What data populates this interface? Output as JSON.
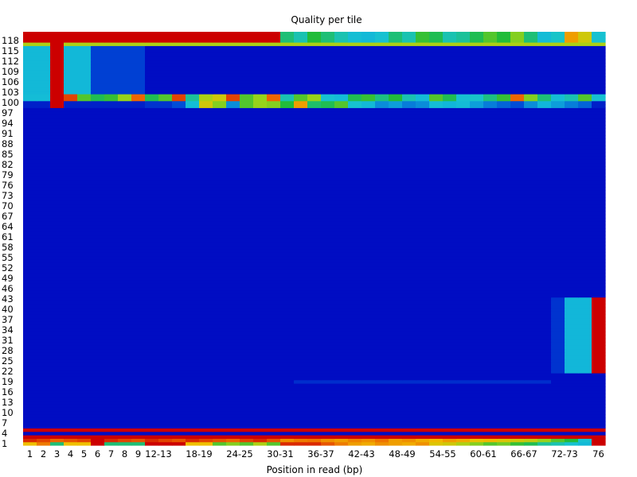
{
  "chart_data": {
    "type": "heatmap",
    "title": "Quality per tile",
    "xlabel": "Position in read (bp)",
    "ylabel": "",
    "x_tick_labels": [
      "1",
      "2",
      "3",
      "4",
      "5",
      "6",
      "7",
      "8",
      "9",
      "12-13",
      "18-19",
      "24-25",
      "30-31",
      "36-37",
      "42-43",
      "48-49",
      "54-55",
      "60-61",
      "66-67",
      "72-73",
      "76"
    ],
    "y_tick_labels": [
      "118",
      "115",
      "112",
      "109",
      "106",
      "103",
      "100",
      "97",
      "94",
      "91",
      "88",
      "85",
      "82",
      "79",
      "76",
      "73",
      "70",
      "67",
      "64",
      "61",
      "58",
      "55",
      "52",
      "49",
      "46",
      "43",
      "40",
      "37",
      "34",
      "31",
      "28",
      "25",
      "22",
      "19",
      "16",
      "13",
      "10",
      "7",
      "4",
      "1"
    ],
    "tile_range": [
      1,
      120
    ],
    "column_count": 43,
    "color_scale": {
      "colors": [
        "#0000bf",
        "#0050d8",
        "#11b6da",
        "#18c4cf",
        "#22bc3a",
        "#9cd41a",
        "#f0c000",
        "#ee6a00",
        "#cc0000"
      ]
    },
    "baseline_level": 0.02,
    "bands": [
      {
        "tiles": [
          118,
          120
        ],
        "columns": [
          0,
          18
        ],
        "level": 1.0
      },
      {
        "tiles": [
          118,
          120
        ],
        "columns": [
          19,
          42
        ],
        "levels": [
          0.45,
          0.4,
          0.5,
          0.45,
          0.4,
          0.32,
          0.28,
          0.35,
          0.45,
          0.4,
          0.52,
          0.48,
          0.4,
          0.42,
          0.48,
          0.55,
          0.5,
          0.6,
          0.45,
          0.3,
          0.38,
          0.8,
          0.7,
          0.35
        ]
      },
      {
        "tiles": [
          117,
          117
        ],
        "columns": [
          0,
          42
        ],
        "level": 0.65
      },
      {
        "tiles": [
          103,
          116
        ],
        "columns": [
          0,
          1
        ],
        "level": 0.28
      },
      {
        "tiles": [
          103,
          116
        ],
        "columns": [
          3,
          4
        ],
        "level": 0.27
      },
      {
        "tiles": [
          103,
          116
        ],
        "columns": [
          5,
          8
        ],
        "level": 0.1
      },
      {
        "tiles": [
          101,
          120
        ],
        "columns": [
          2,
          2
        ],
        "level": 1.0
      },
      {
        "tiles": [
          101,
          102
        ],
        "columns": [
          0,
          42
        ],
        "levels": [
          0.3,
          0.3,
          1.0,
          0.92,
          0.55,
          0.48,
          0.52,
          0.62,
          0.88,
          0.48,
          0.55,
          0.92,
          0.42,
          0.65,
          0.7,
          0.92,
          0.55,
          0.62,
          0.88,
          0.4,
          0.55,
          0.62,
          0.35,
          0.3,
          0.48,
          0.52,
          0.44,
          0.5,
          0.4,
          0.3,
          0.55,
          0.48,
          0.35,
          0.38,
          0.44,
          0.52,
          0.88,
          0.6,
          0.45,
          0.32,
          0.4,
          0.55,
          0.35
        ]
      },
      {
        "tiles": [
          99,
          100
        ],
        "columns": [
          0,
          42
        ],
        "levels": [
          0.05,
          0.05,
          1.0,
          0.05,
          0.05,
          0.05,
          0.05,
          0.05,
          0.05,
          0.08,
          0.08,
          0.12,
          0.3,
          0.7,
          0.6,
          0.2,
          0.55,
          0.62,
          0.6,
          0.5,
          0.8,
          0.46,
          0.48,
          0.55,
          0.35,
          0.28,
          0.2,
          0.22,
          0.18,
          0.2,
          0.3,
          0.25,
          0.3,
          0.22,
          0.18,
          0.15,
          0.12,
          0.2,
          0.25,
          0.22,
          0.18,
          0.15,
          0.05
        ]
      },
      {
        "tiles": [
          22,
          43
        ],
        "columns": [
          39,
          39
        ],
        "level": 0.08
      },
      {
        "tiles": [
          22,
          43
        ],
        "columns": [
          40,
          41
        ],
        "level": 0.26
      },
      {
        "tiles": [
          22,
          43
        ],
        "columns": [
          42,
          42
        ],
        "level": 1.0
      },
      {
        "tiles": [
          19,
          19
        ],
        "columns": [
          20,
          38
        ],
        "level": 0.07
      },
      {
        "tiles": [
          5,
          5
        ],
        "columns": [
          0,
          42
        ],
        "level": 1.0
      },
      {
        "tiles": [
          3,
          3
        ],
        "columns": [
          0,
          42
        ],
        "level": 1.0
      },
      {
        "tiles": [
          2,
          2
        ],
        "columns": [
          0,
          42
        ],
        "levels": [
          0.95,
          0.92,
          0.88,
          0.9,
          0.92,
          1.0,
          0.95,
          0.92,
          0.9,
          0.95,
          0.92,
          0.9,
          0.95,
          0.92,
          0.9,
          0.88,
          0.92,
          0.95,
          0.9,
          0.82,
          0.85,
          0.86,
          0.82,
          0.8,
          0.84,
          0.82,
          0.86,
          0.8,
          0.82,
          0.78,
          0.76,
          0.8,
          0.78,
          0.74,
          0.76,
          0.72,
          0.7,
          0.68,
          0.62,
          0.55,
          0.5,
          0.35,
          1.0
        ]
      },
      {
        "tiles": [
          1,
          1
        ],
        "columns": [
          0,
          42
        ],
        "levels": [
          0.75,
          0.85,
          0.45,
          0.75,
          0.75,
          1.0,
          0.45,
          0.45,
          0.45,
          1.0,
          1.0,
          1.0,
          0.75,
          0.75,
          0.55,
          0.6,
          0.55,
          0.65,
          0.55,
          0.95,
          0.95,
          0.95,
          0.9,
          0.85,
          0.8,
          0.78,
          0.82,
          0.8,
          0.78,
          0.82,
          0.72,
          0.7,
          0.65,
          0.6,
          0.55,
          0.58,
          0.52,
          0.48,
          0.42,
          0.4,
          0.35,
          0.28,
          1.0
        ]
      }
    ]
  }
}
